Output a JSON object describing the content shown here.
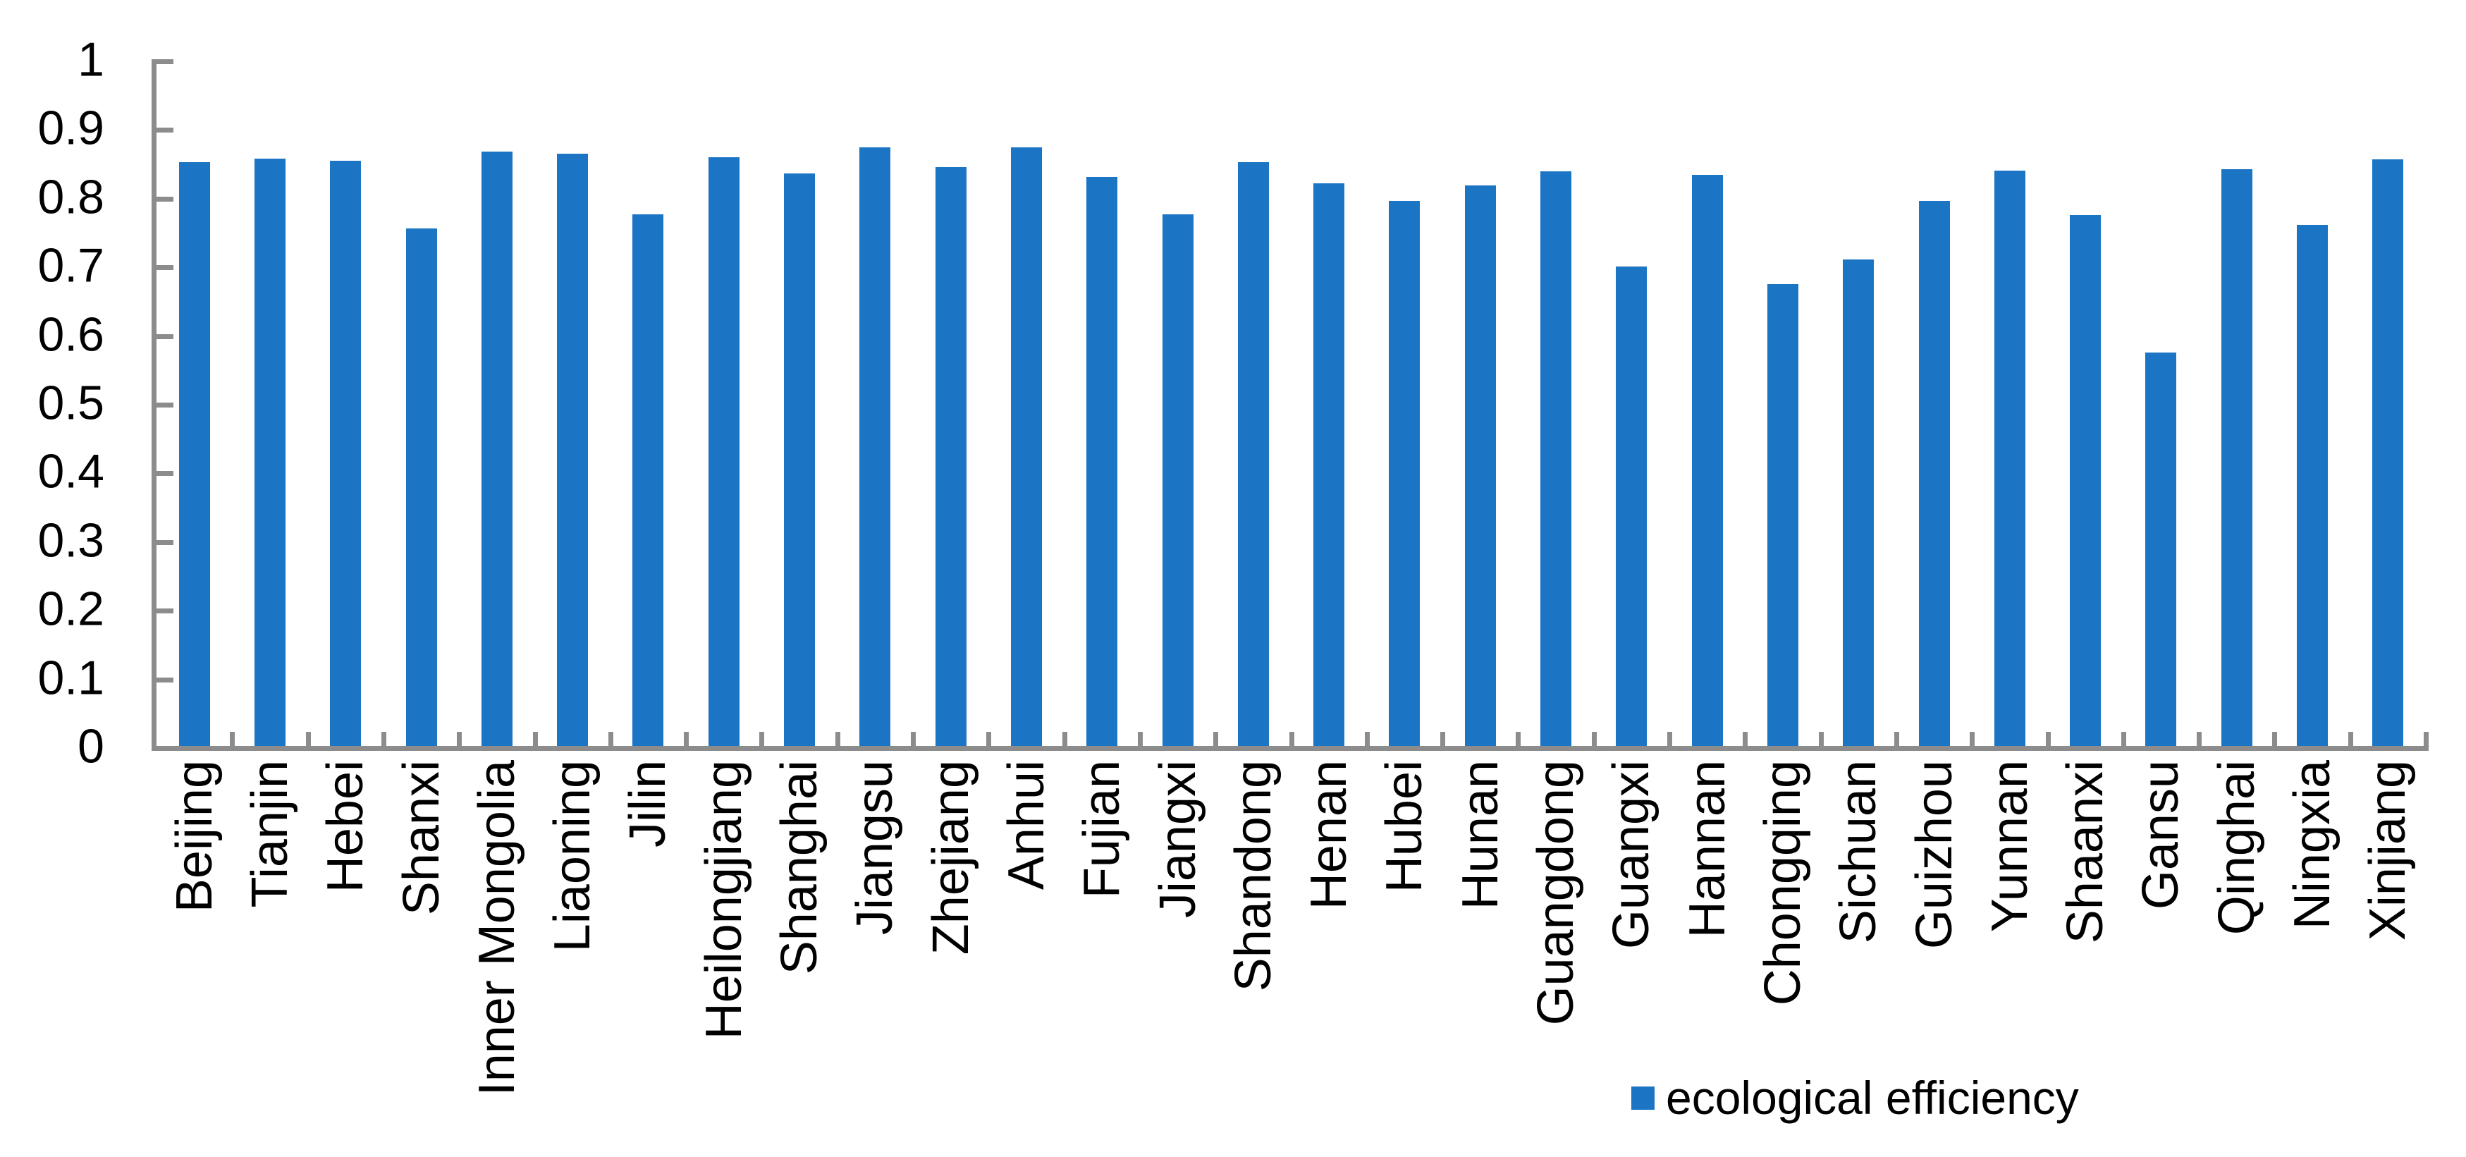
{
  "chart_data": {
    "type": "bar",
    "title": "",
    "xlabel": "",
    "ylabel": "",
    "categories": [
      "Beijing",
      "Tianjin",
      "Hebei",
      "Shanxi",
      "Inner Mongolia",
      "Liaoning",
      "Jilin",
      "Heilongjiang",
      "Shanghai",
      "Jiangsu",
      "Zhejiang",
      "Anhui",
      "Fujian",
      "Jiangxi",
      "Shandong",
      "Henan",
      "Hubei",
      "Hunan",
      "Guangdong",
      "Guangxi",
      "Hannan",
      "Chongqing",
      "Sichuan",
      "Guizhou",
      "Yunnan",
      "Shaanxi",
      "Gansu",
      "Qinghai",
      "Ningxia",
      "Xinjiang"
    ],
    "series": [
      {
        "name": "ecological efficiency",
        "values": [
          0.853,
          0.858,
          0.855,
          0.757,
          0.869,
          0.866,
          0.777,
          0.86,
          0.837,
          0.875,
          0.846,
          0.875,
          0.832,
          0.777,
          0.853,
          0.822,
          0.797,
          0.819,
          0.84,
          0.701,
          0.835,
          0.676,
          0.712,
          0.797,
          0.841,
          0.776,
          0.576,
          0.843,
          0.762,
          0.857
        ]
      }
    ],
    "legend": {
      "label": "ecological efficiency",
      "position": "bottom-right",
      "marker": "square"
    },
    "ylim": [
      0,
      1
    ],
    "ytick_step": 0.1,
    "ytick_labels": [
      "0",
      "0.1",
      "0.2",
      "0.3",
      "0.4",
      "0.5",
      "0.6",
      "0.7",
      "0.8",
      "0.9",
      "1"
    ],
    "grid": false,
    "x_labels_rotation_deg": 90,
    "colors": {
      "bar": "#1C75C4",
      "axis": "#8C8C8C",
      "text": "#000000",
      "background": "#FFFFFF"
    }
  }
}
